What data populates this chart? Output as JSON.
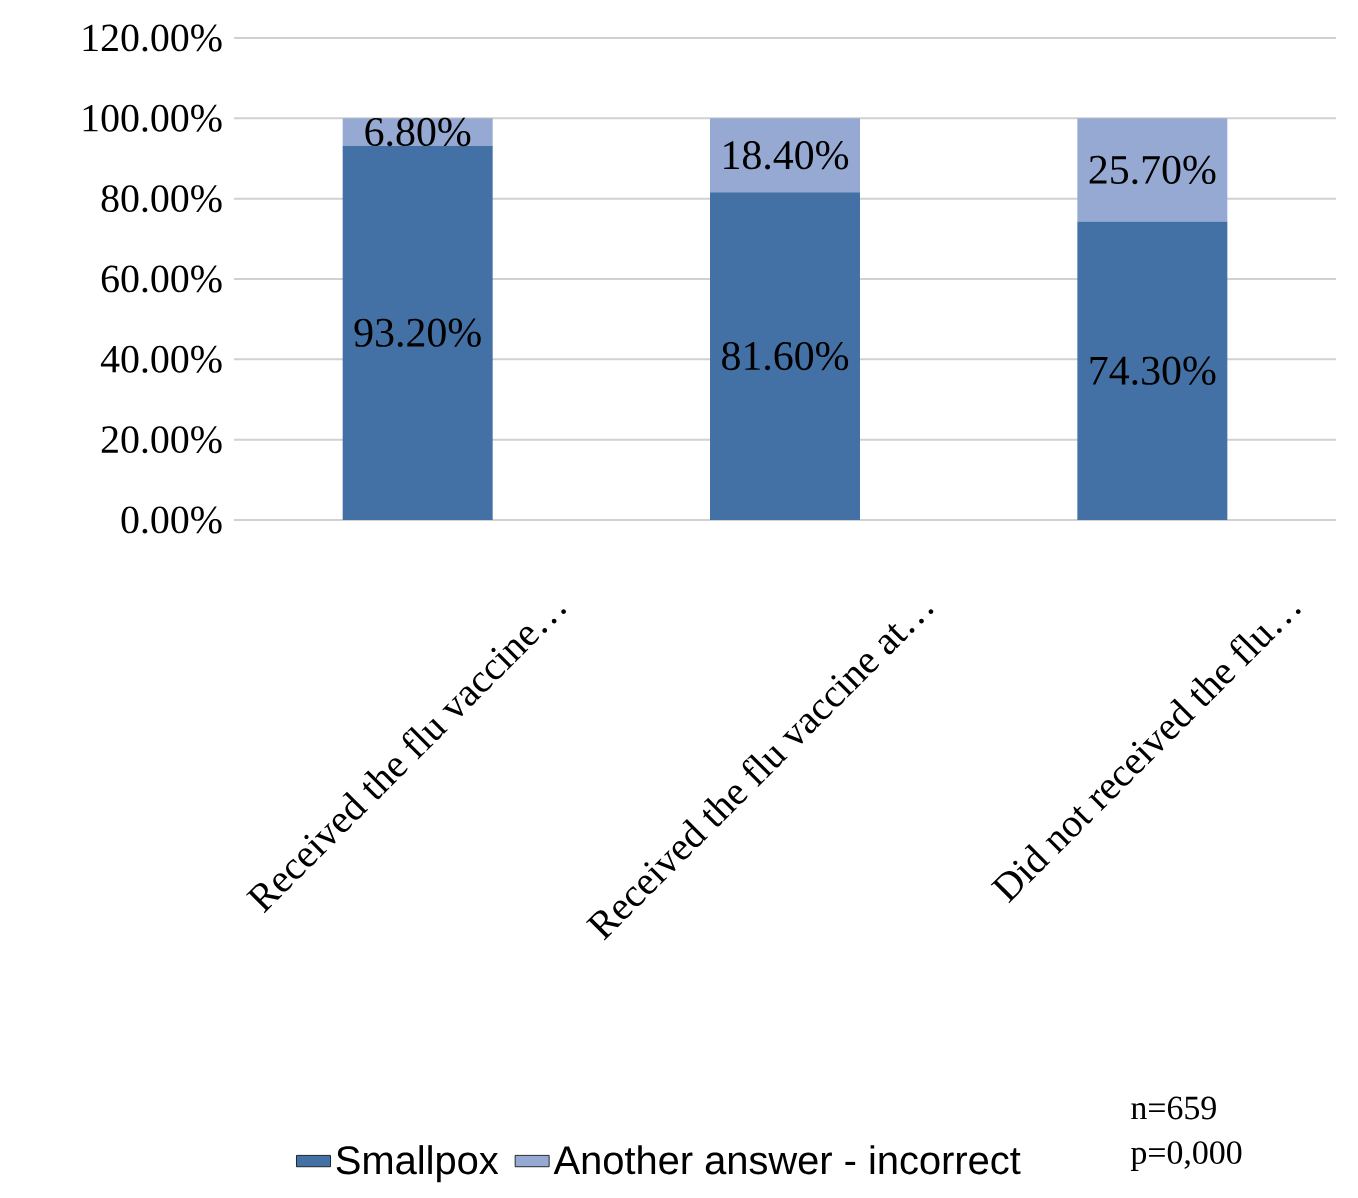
{
  "chart_data": {
    "type": "bar",
    "stacked": true,
    "categories": [
      "Received the flu vaccine…",
      "Received the flu vaccine at…",
      "Did not received the flu…"
    ],
    "series": [
      {
        "name": "Smallpox",
        "color": "#4471a5",
        "values": [
          93.2,
          81.6,
          74.3
        ],
        "value_labels": [
          "93.20%",
          "81.60%",
          "74.30%"
        ]
      },
      {
        "name": "Another answer - incorrect",
        "color": "#95a9d2",
        "values": [
          6.8,
          18.4,
          25.7
        ],
        "value_labels": [
          "6.80%",
          "18.40%",
          "25.70%"
        ]
      }
    ],
    "ylim": [
      0,
      120
    ],
    "yticks": [
      {
        "value": 0,
        "label": "0.00%"
      },
      {
        "value": 20,
        "label": "20.00%"
      },
      {
        "value": 40,
        "label": "40.00%"
      },
      {
        "value": 60,
        "label": "60.00%"
      },
      {
        "value": 80,
        "label": "80.00%"
      },
      {
        "value": 100,
        "label": "100.00%"
      },
      {
        "value": 120,
        "label": "120.00%"
      }
    ],
    "grid": "y",
    "legend": "bottom",
    "annotations": [
      "n=659",
      "p=0,000"
    ]
  }
}
